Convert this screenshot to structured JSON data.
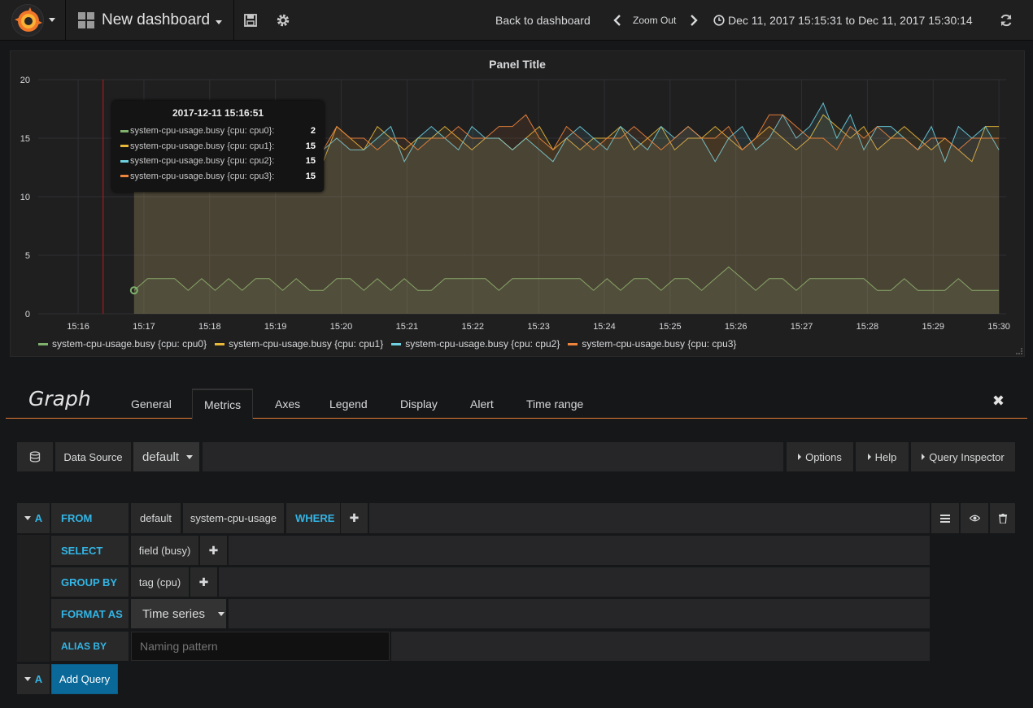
{
  "navbar": {
    "dashboard_title": "New dashboard",
    "back_label": "Back to dashboard",
    "zoom_out_label": "Zoom Out",
    "time_range": "Dec 11, 2017 15:15:31 to Dec 11, 2017 15:30:14"
  },
  "panel": {
    "title": "Panel Title",
    "legend": [
      {
        "label": "system-cpu-usage.busy {cpu: cpu0}",
        "color": "#7eb26d"
      },
      {
        "label": "system-cpu-usage.busy {cpu: cpu1}",
        "color": "#eab839"
      },
      {
        "label": "system-cpu-usage.busy {cpu: cpu2}",
        "color": "#6ed0e0"
      },
      {
        "label": "system-cpu-usage.busy {cpu: cpu3}",
        "color": "#ef843c"
      }
    ],
    "tooltip": {
      "time": "2017-12-11 15:16:51",
      "rows": [
        {
          "label": "system-cpu-usage.busy {cpu: cpu0}:",
          "value": "2"
        },
        {
          "label": "system-cpu-usage.busy {cpu: cpu1}:",
          "value": "15"
        },
        {
          "label": "system-cpu-usage.busy {cpu: cpu2}:",
          "value": "15"
        },
        {
          "label": "system-cpu-usage.busy {cpu: cpu3}:",
          "value": "15"
        }
      ]
    }
  },
  "chart_data": {
    "type": "line",
    "title": "Panel Title",
    "xlabel": "",
    "ylabel": "",
    "ylim": [
      0,
      20
    ],
    "yticks": [
      "0",
      "5",
      "10",
      "15",
      "20"
    ],
    "xticks": [
      "15:16",
      "15:17",
      "15:18",
      "15:19",
      "15:20",
      "15:21",
      "15:22",
      "15:23",
      "15:24",
      "15:25",
      "15:26",
      "15:27",
      "15:28",
      "15:29",
      "15:30"
    ],
    "x_start": "15:16:51",
    "x_end": "15:30:00",
    "interval_seconds": 15,
    "series": [
      {
        "name": "system-cpu-usage.busy {cpu: cpu0}",
        "color": "#7eb26d",
        "values": [
          2,
          3,
          3,
          3,
          2,
          3,
          2,
          3,
          2,
          3,
          3,
          2,
          3,
          2,
          2,
          3,
          3,
          2,
          3,
          2,
          3,
          2,
          2,
          3,
          3,
          3,
          3,
          2,
          3,
          3,
          3,
          3,
          3,
          3,
          2,
          3,
          2,
          3,
          3,
          2,
          3,
          3,
          2,
          3,
          4,
          3,
          2,
          3,
          3,
          2,
          3,
          3,
          3,
          3,
          3,
          2,
          2,
          3,
          2,
          2,
          2,
          3,
          2,
          2,
          2
        ]
      },
      {
        "name": "system-cpu-usage.busy {cpu: cpu1}",
        "color": "#eab839",
        "values": [
          15,
          15,
          14,
          15,
          14,
          13,
          14,
          14,
          15,
          15,
          16,
          14,
          15,
          13,
          13,
          16,
          15,
          14,
          16,
          15,
          14,
          15,
          15,
          16,
          15,
          14,
          15,
          15,
          14,
          15,
          16,
          14,
          15,
          14,
          15,
          15,
          16,
          14,
          15,
          16,
          14,
          15,
          15,
          16,
          15,
          14,
          15,
          16,
          15,
          14,
          15,
          17,
          16,
          15,
          16,
          14,
          15,
          16,
          15,
          14,
          15,
          14,
          13,
          16,
          16
        ]
      },
      {
        "name": "system-cpu-usage.busy {cpu: cpu2}",
        "color": "#6ed0e0",
        "values": [
          15,
          15,
          15,
          14,
          16,
          15,
          14,
          14,
          15,
          16,
          16,
          15,
          14,
          15,
          14,
          15,
          14,
          14,
          15,
          16,
          13,
          15,
          16,
          15,
          14,
          16,
          15,
          15,
          14,
          15,
          14,
          13,
          15,
          16,
          15,
          14,
          16,
          15,
          14,
          16,
          15,
          16,
          15,
          13,
          15,
          16,
          14,
          15,
          17,
          15,
          16,
          18,
          15,
          17,
          14,
          16,
          16,
          15,
          14,
          16,
          13,
          16,
          15,
          16,
          14
        ]
      },
      {
        "name": "system-cpu-usage.busy {cpu: cpu3}",
        "color": "#ef843c",
        "values": [
          15,
          15,
          16,
          15,
          14,
          15,
          14,
          15,
          16,
          15,
          14,
          15,
          15,
          16,
          14,
          16,
          15,
          15,
          14,
          15,
          15,
          14,
          15,
          15,
          16,
          15,
          15,
          16,
          16,
          17,
          15,
          14,
          16,
          15,
          14,
          15,
          15,
          16,
          15,
          14,
          15,
          16,
          15,
          15,
          16,
          14,
          15,
          17,
          17,
          16,
          15,
          15,
          14,
          16,
          15,
          16,
          15,
          15,
          14,
          15,
          15,
          14,
          15,
          15,
          15
        ]
      }
    ]
  },
  "editor": {
    "title": "Graph",
    "tabs": [
      "General",
      "Metrics",
      "Axes",
      "Legend",
      "Display",
      "Alert",
      "Time range"
    ],
    "active_tab": "Metrics",
    "close": "✖"
  },
  "datasource": {
    "label": "Data Source",
    "value": "default",
    "options_label": "Options",
    "help_label": "Help",
    "inspector_label": "Query Inspector"
  },
  "query": {
    "ref_id": "A",
    "from_label": "FROM",
    "from_policy": "default",
    "from_measurement": "system-cpu-usage",
    "where_label": "WHERE",
    "select_label": "SELECT",
    "select_value": "field (busy)",
    "group_by_label": "GROUP BY",
    "group_by_value": "tag (cpu)",
    "format_as_label": "FORMAT AS",
    "format_as_value": "Time series",
    "alias_by_label": "ALIAS BY",
    "alias_placeholder": "Naming pattern",
    "plus": "✚"
  },
  "add_query": {
    "ref_id": "A",
    "label": "Add Query"
  }
}
